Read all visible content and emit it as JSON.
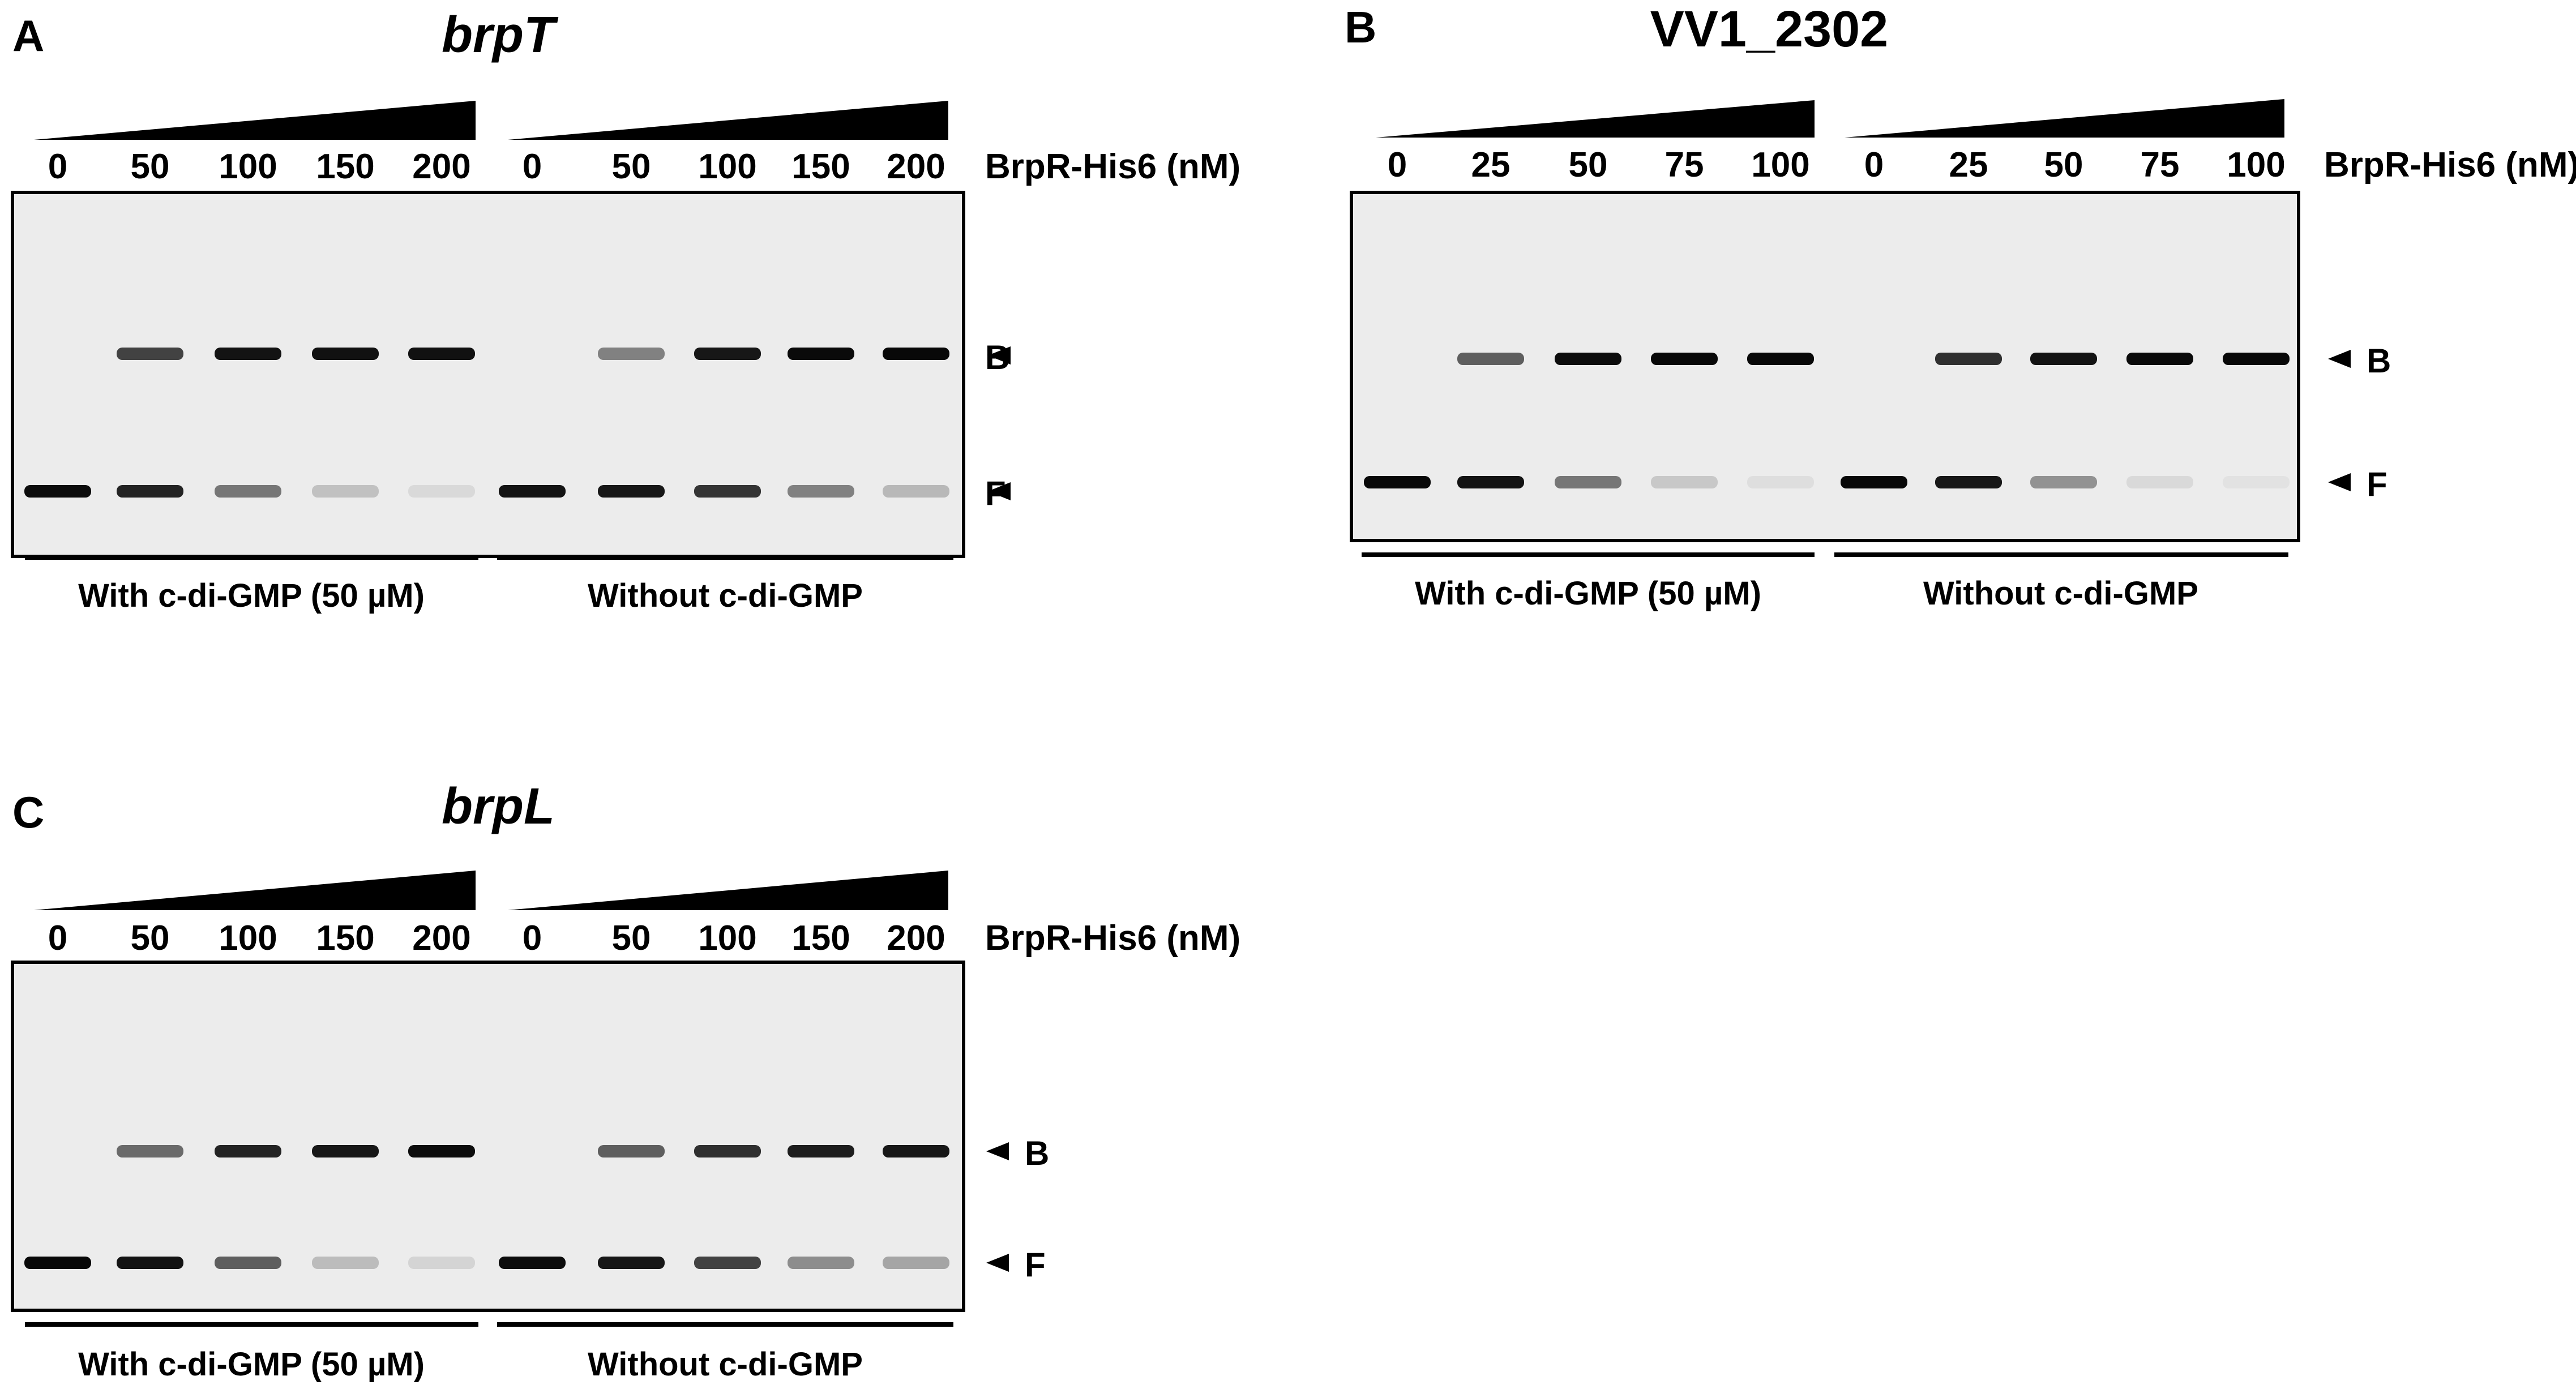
{
  "panels": [
    {
      "letter": "A",
      "gene": "brpT",
      "gene_italic": true,
      "protein_label": "BrpR-His6 (nM)",
      "concentrations": [
        "0",
        "50",
        "100",
        "150",
        "200",
        "0",
        "50",
        "100",
        "150",
        "200"
      ],
      "conditions": [
        "With c-di-GMP (50 µM)",
        "Without c-di-GMP"
      ],
      "band_labels": [
        "B",
        "F"
      ],
      "bound_intensity": [
        0,
        0.72,
        0.92,
        0.93,
        0.93,
        0,
        0.45,
        0.9,
        0.96,
        0.97
      ],
      "free_intensity": [
        0.95,
        0.85,
        0.5,
        0.18,
        0.08,
        0.92,
        0.9,
        0.78,
        0.45,
        0.22
      ]
    },
    {
      "letter": "B",
      "gene": "VV1_2302",
      "gene_italic": false,
      "protein_label": "BrpR-His6 (nM)",
      "concentrations": [
        "0",
        "25",
        "50",
        "75",
        "100",
        "0",
        "25",
        "50",
        "75",
        "100"
      ],
      "conditions": [
        "With c-di-GMP (50 µM)",
        "Without c-di-GMP"
      ],
      "band_labels": [
        "B",
        "F"
      ],
      "bound_intensity": [
        0,
        0.6,
        0.95,
        0.97,
        0.97,
        0,
        0.8,
        0.92,
        0.96,
        0.97
      ],
      "free_intensity": [
        0.97,
        0.92,
        0.5,
        0.15,
        0.06,
        0.97,
        0.9,
        0.38,
        0.08,
        0.04
      ]
    },
    {
      "letter": "C",
      "gene": "brpL",
      "gene_italic": true,
      "protein_label": "BrpR-His6 (nM)",
      "concentrations": [
        "0",
        "50",
        "100",
        "150",
        "200",
        "0",
        "50",
        "100",
        "150",
        "200"
      ],
      "conditions": [
        "With c-di-GMP (50 µM)",
        "Without c-di-GMP"
      ],
      "band_labels": [
        "B",
        "F"
      ],
      "bound_intensity": [
        0,
        0.55,
        0.85,
        0.9,
        0.95,
        0,
        0.6,
        0.8,
        0.88,
        0.9
      ],
      "free_intensity": [
        0.97,
        0.92,
        0.6,
        0.2,
        0.1,
        0.95,
        0.9,
        0.72,
        0.4,
        0.3
      ]
    }
  ],
  "colors": {
    "band": "#000000",
    "gel_background": "#ececec",
    "gel_border": "#000000"
  }
}
